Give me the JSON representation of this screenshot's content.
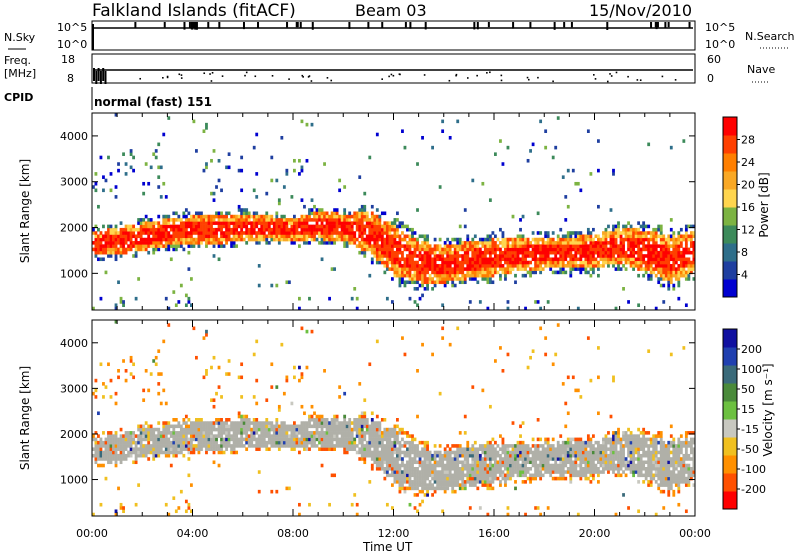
{
  "header": {
    "station": "Falkland Islands (fitACF)",
    "beam": "Beam 03",
    "date": "15/Nov/2010"
  },
  "strips": {
    "nsky_label": "N.Sky",
    "nsky_ticks": [
      "10^5",
      "10^0"
    ],
    "nsearch_label": "N.Search",
    "nsearch_ticks": [
      "10^5",
      "10^0"
    ],
    "freq_label": "Freq.",
    "freq_unit": "[MHz]",
    "freq_ticks": [
      "18",
      "8"
    ],
    "nave_label": "Nave",
    "nave_ticks": [
      "60",
      "0"
    ],
    "cpid_label": "CPID",
    "cpid_value": "normal (fast) 151"
  },
  "colors": {
    "power_scale": [
      "#0000d0",
      "#1f3fa0",
      "#2e6e8a",
      "#3c8a5a",
      "#7cb342",
      "#ffd54f",
      "#f9a825",
      "#ff7f00",
      "#ff4000",
      "#ff0000"
    ],
    "velocity_scale": [
      "#1010a0",
      "#2040b0",
      "#3a6a7a",
      "#4a8a3a",
      "#6cc040",
      "#c8c8c0",
      "#f0c020",
      "#ff9000",
      "#ff5000",
      "#ff0000"
    ],
    "ground_scatter": "#b0b0a8"
  },
  "chart_data": [
    {
      "type": "heatmap",
      "title": "",
      "xlabel": "Time UT",
      "ylabel": "Slant Range [km]",
      "x_ticks": [
        "00:00",
        "04:00",
        "08:00",
        "12:00",
        "16:00",
        "20:00",
        "00:00"
      ],
      "xlim": [
        "00:00",
        "24:00"
      ],
      "y_ticks": [
        1000,
        2000,
        3000,
        4000
      ],
      "ylim": [
        200,
        4500
      ],
      "colorbar": {
        "label": "Power [dB]",
        "ticks": [
          4,
          8,
          12,
          16,
          20,
          24,
          28
        ]
      },
      "bands": [
        {
          "t": [
            0,
            1,
            2,
            3,
            4,
            5,
            6,
            7,
            8,
            9,
            10,
            11,
            12,
            13,
            14,
            15,
            16,
            17,
            18,
            19,
            20,
            21,
            22,
            23,
            24
          ],
          "center": [
            1650,
            1700,
            1800,
            1900,
            1950,
            1950,
            2000,
            2000,
            1950,
            2050,
            2000,
            1900,
            1500,
            1250,
            1200,
            1300,
            1350,
            1400,
            1450,
            1450,
            1500,
            1600,
            1500,
            1300,
            1500
          ],
          "halfwidth": [
            250,
            300,
            300,
            300,
            300,
            300,
            300,
            250,
            250,
            300,
            300,
            450,
            550,
            450,
            400,
            400,
            400,
            350,
            350,
            350,
            350,
            400,
            450,
            500,
            450
          ]
        }
      ]
    },
    {
      "type": "heatmap",
      "title": "",
      "xlabel": "Time UT",
      "ylabel": "Slant Range [km]",
      "x_ticks": [
        "00:00",
        "04:00",
        "08:00",
        "12:00",
        "16:00",
        "20:00",
        "00:00"
      ],
      "xlim": [
        "00:00",
        "24:00"
      ],
      "y_ticks": [
        1000,
        2000,
        3000,
        4000
      ],
      "ylim": [
        200,
        4500
      ],
      "colorbar": {
        "label": "Velocity [m s⁻¹]",
        "ticks": [
          200,
          100,
          50,
          15,
          -15,
          -50,
          -100,
          -200
        ]
      }
    }
  ]
}
